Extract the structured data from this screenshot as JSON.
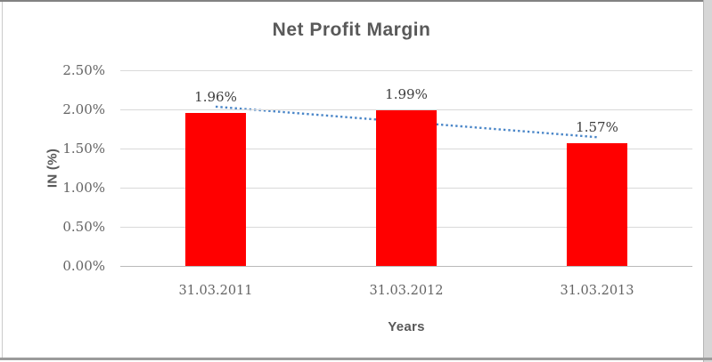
{
  "chart_data": {
    "type": "bar",
    "title": "Net Profit Margin",
    "xlabel": "Years",
    "ylabel": "IN (%)",
    "categories": [
      "31.03.2011",
      "31.03.2012",
      "31.03.2013"
    ],
    "values": [
      1.96,
      1.99,
      1.57
    ],
    "data_labels": [
      "1.96%",
      "1.99%",
      "1.57%"
    ],
    "y_ticks": [
      "2.50%",
      "2.00%",
      "1.50%",
      "1.00%",
      "0.50%",
      "0.00%"
    ],
    "ylim": [
      0,
      2.5
    ],
    "y_tick_step": 0.5,
    "grid": true,
    "legend": false,
    "bar_color": "#ff0000",
    "trendline": {
      "kind": "linear",
      "style": "dotted",
      "color": "#4a86c8"
    }
  }
}
